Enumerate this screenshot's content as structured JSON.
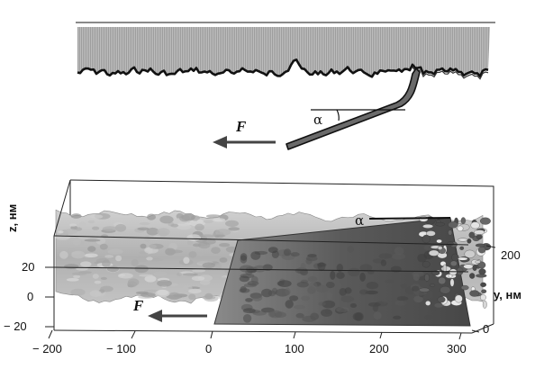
{
  "top_panel": {
    "force_label": "F",
    "angle_label": "α"
  },
  "bottom_panel": {
    "force_label": "F",
    "angle_label": "α",
    "z_axis": {
      "title": "z, нм",
      "ticks": [
        "20",
        "0",
        "− 20"
      ]
    },
    "x_axis": {
      "ticks": [
        "− 200",
        "− 100",
        "0",
        "100",
        "200",
        "300"
      ]
    },
    "y_axis": {
      "title": "y, нм",
      "ticks": [
        "200",
        "0"
      ]
    }
  },
  "colors": {
    "ink": "#111111",
    "surface": "#b4b4b4",
    "film_dark": "#5e5e5e"
  }
}
